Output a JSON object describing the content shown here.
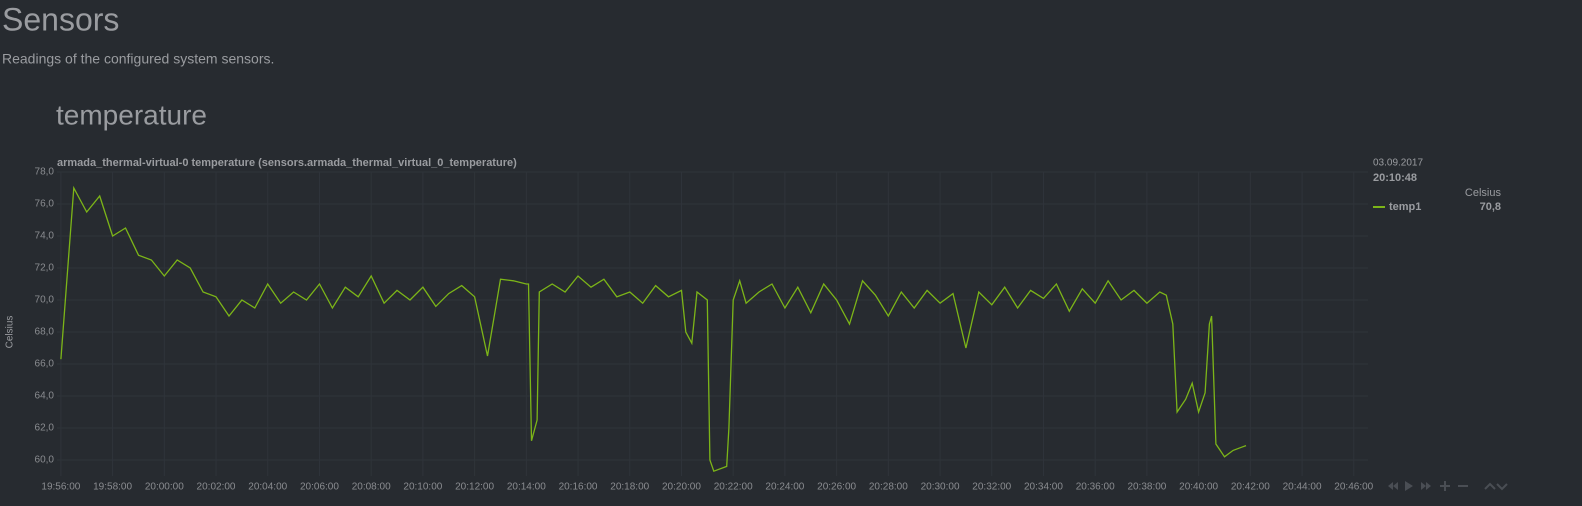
{
  "header": {
    "title": "Sensors",
    "subtitle": "Readings of the configured system sensors."
  },
  "section": "temperature",
  "chart_data": {
    "type": "line",
    "title": "armada_thermal-virtual-0 temperature (sensors.armada_thermal_virtual_0_temperature)",
    "y_label": "Celsius",
    "legend": {
      "date": "03.09.2017",
      "time": "20:10:48",
      "value": "70,8"
    },
    "grid": true,
    "xlim": [
      "19:55:51",
      "20:46:33"
    ],
    "xticks": [
      "19:56:00",
      "19:58:00",
      "20:00:00",
      "20:02:00",
      "20:04:00",
      "20:06:00",
      "20:08:00",
      "20:10:00",
      "20:12:00",
      "20:14:00",
      "20:16:00",
      "20:18:00",
      "20:20:00",
      "20:22:00",
      "20:24:00",
      "20:26:00",
      "20:28:00",
      "20:30:00",
      "20:32:00",
      "20:34:00",
      "20:36:00",
      "20:38:00",
      "20:40:00",
      "20:42:00",
      "20:44:00",
      "20:46:00"
    ],
    "ylim": [
      59,
      78
    ],
    "yticks": [
      {
        "value": 60,
        "label": "60,0"
      },
      {
        "value": 62,
        "label": "62,0"
      },
      {
        "value": 64,
        "label": "64,0"
      },
      {
        "value": 66,
        "label": "66,0"
      },
      {
        "value": 68,
        "label": "68,0"
      },
      {
        "value": 70,
        "label": "70,0"
      },
      {
        "value": 72,
        "label": "72,0"
      },
      {
        "value": 74,
        "label": "74,0"
      },
      {
        "value": 76,
        "label": "76,0"
      },
      {
        "value": 78,
        "label": "78,0"
      }
    ],
    "x": [
      "19:56:00",
      "19:56:30",
      "19:57:00",
      "19:57:30",
      "19:58:00",
      "19:58:30",
      "19:59:00",
      "19:59:30",
      "20:00:00",
      "20:00:30",
      "20:01:00",
      "20:01:30",
      "20:02:00",
      "20:02:30",
      "20:03:00",
      "20:03:30",
      "20:04:00",
      "20:04:30",
      "20:05:00",
      "20:05:30",
      "20:06:00",
      "20:06:30",
      "20:07:00",
      "20:07:30",
      "20:08:00",
      "20:08:30",
      "20:09:00",
      "20:09:30",
      "20:10:00",
      "20:10:30",
      "20:11:00",
      "20:11:30",
      "20:12:00",
      "20:12:30",
      "20:13:00",
      "20:13:30",
      "20:14:00",
      "20:14:05",
      "20:14:12",
      "20:14:25",
      "20:14:30",
      "20:15:00",
      "20:15:30",
      "20:16:00",
      "20:16:30",
      "20:17:00",
      "20:17:30",
      "20:18:00",
      "20:18:30",
      "20:19:00",
      "20:19:30",
      "20:20:00",
      "20:20:10",
      "20:20:24",
      "20:20:36",
      "20:21:00",
      "20:21:06",
      "20:21:15",
      "20:21:45",
      "20:21:50",
      "20:22:00",
      "20:22:15",
      "20:22:30",
      "20:23:00",
      "20:23:30",
      "20:24:00",
      "20:24:30",
      "20:25:00",
      "20:25:30",
      "20:26:00",
      "20:26:30",
      "20:27:00",
      "20:27:30",
      "20:28:00",
      "20:28:30",
      "20:29:00",
      "20:29:30",
      "20:30:00",
      "20:30:30",
      "20:31:00",
      "20:31:30",
      "20:32:00",
      "20:32:30",
      "20:33:00",
      "20:33:30",
      "20:34:00",
      "20:34:30",
      "20:35:00",
      "20:35:30",
      "20:36:00",
      "20:36:30",
      "20:37:00",
      "20:37:30",
      "20:38:00",
      "20:38:30",
      "20:38:45",
      "20:39:00",
      "20:39:10",
      "20:39:30",
      "20:39:45",
      "20:40:00",
      "20:40:15",
      "20:40:25",
      "20:40:30",
      "20:40:40",
      "20:40:50",
      "20:41:00",
      "20:41:20",
      "20:41:40",
      "20:41:50"
    ],
    "series": [
      {
        "name": "temp1",
        "color": "#7cb518",
        "values": [
          66.3,
          77.0,
          75.5,
          76.5,
          74.0,
          74.5,
          72.8,
          72.5,
          71.5,
          72.5,
          72.0,
          70.5,
          70.2,
          69.0,
          70.0,
          69.5,
          71.0,
          69.8,
          70.5,
          70.0,
          71.0,
          69.5,
          70.8,
          70.2,
          71.5,
          69.8,
          70.6,
          70.0,
          70.8,
          69.6,
          70.4,
          70.9,
          70.2,
          66.5,
          71.3,
          71.2,
          71.0,
          71.0,
          61.2,
          62.5,
          70.5,
          71.0,
          70.5,
          71.5,
          70.8,
          71.3,
          70.2,
          70.5,
          69.8,
          70.9,
          70.2,
          70.6,
          68.0,
          67.3,
          70.5,
          70.0,
          60.0,
          59.3,
          59.6,
          62.0,
          70.0,
          71.2,
          69.8,
          70.5,
          71.0,
          69.5,
          70.8,
          69.2,
          71.0,
          70.0,
          68.5,
          71.2,
          70.3,
          69.0,
          70.5,
          69.5,
          70.6,
          69.8,
          70.4,
          67.0,
          70.5,
          69.7,
          70.8,
          69.5,
          70.6,
          70.1,
          71.0,
          69.3,
          70.7,
          69.8,
          71.2,
          70.0,
          70.6,
          69.8,
          70.5,
          70.3,
          68.5,
          63.0,
          63.8,
          64.8,
          63.0,
          64.2,
          68.5,
          69.0,
          61.0,
          60.6,
          60.2,
          60.6,
          60.8,
          60.9
        ]
      }
    ]
  }
}
